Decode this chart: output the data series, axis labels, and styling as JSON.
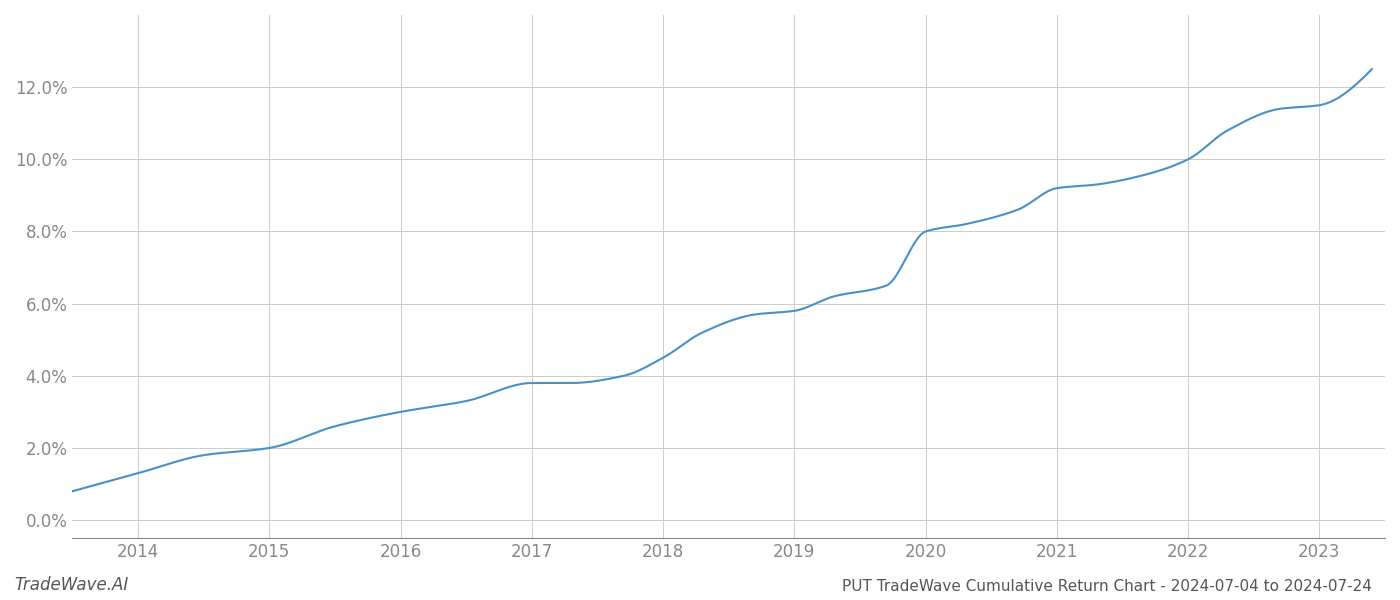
{
  "title": "PUT TradeWave Cumulative Return Chart - 2024-07-04 to 2024-07-24",
  "watermark": "TradeWave.AI",
  "line_color": "#4a90c4",
  "background_color": "#ffffff",
  "grid_color": "#cccccc",
  "x_years": [
    2014,
    2015,
    2016,
    2017,
    2018,
    2019,
    2020,
    2021,
    2022,
    2023
  ],
  "key_x": [
    2013.5,
    2014.0,
    2014.5,
    2015.0,
    2015.5,
    2016.0,
    2016.5,
    2017.0,
    2017.3,
    2017.7,
    2018.0,
    2018.3,
    2018.7,
    2019.0,
    2019.3,
    2019.7,
    2020.0,
    2020.3,
    2020.7,
    2021.0,
    2021.3,
    2021.7,
    2022.0,
    2022.3,
    2022.7,
    2023.0,
    2023.4
  ],
  "key_y": [
    0.008,
    0.013,
    0.018,
    0.02,
    0.026,
    0.03,
    0.033,
    0.038,
    0.038,
    0.04,
    0.045,
    0.052,
    0.057,
    0.058,
    0.062,
    0.065,
    0.08,
    0.082,
    0.086,
    0.092,
    0.093,
    0.096,
    0.1,
    0.108,
    0.114,
    0.115,
    0.125
  ],
  "ylim": [
    -0.005,
    0.14
  ],
  "xlim": [
    2013.5,
    2023.5
  ],
  "yticks": [
    0.0,
    0.02,
    0.04,
    0.06,
    0.08,
    0.1,
    0.12
  ],
  "ytick_labels": [
    "0.0%",
    "2.0%",
    "4.0%",
    "6.0%",
    "8.0%",
    "10.0%",
    "12.0%"
  ],
  "line_width": 1.5,
  "title_fontsize": 11,
  "tick_fontsize": 12,
  "watermark_fontsize": 12,
  "title_color": "#555555",
  "tick_color": "#888888",
  "watermark_color": "#555555",
  "spine_color": "#888888"
}
